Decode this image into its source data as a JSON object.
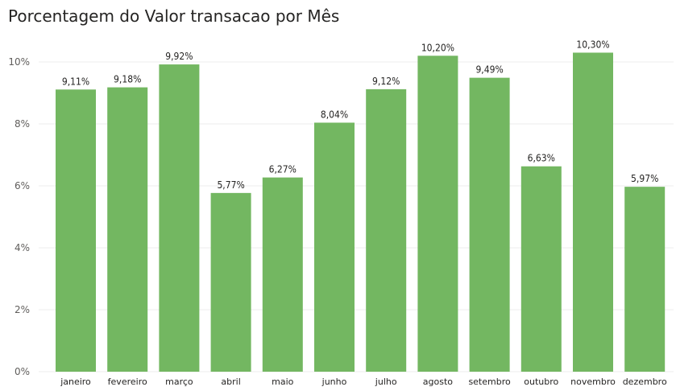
{
  "chart_data": {
    "type": "bar",
    "title": "Porcentagem do Valor transacao por Mês",
    "categories": [
      "janeiro",
      "fevereiro",
      "março",
      "abril",
      "maio",
      "junho",
      "julho",
      "agosto",
      "setembro",
      "outubro",
      "novembro",
      "dezembro"
    ],
    "values": [
      9.11,
      9.18,
      9.92,
      5.77,
      6.27,
      8.04,
      9.12,
      10.2,
      9.49,
      6.63,
      10.3,
      5.97
    ],
    "data_labels": [
      "9,11%",
      "9,18%",
      "9,92%",
      "5,77%",
      "6,27%",
      "8,04%",
      "9,12%",
      "10,20%",
      "9,49%",
      "6,63%",
      "10,30%",
      "5,97%"
    ],
    "yticks": [
      0,
      2,
      4,
      6,
      8,
      10
    ],
    "ytick_labels": [
      "0%",
      "2%",
      "4%",
      "6%",
      "8%",
      "10%"
    ],
    "ylim": [
      0,
      10.6
    ],
    "xlabel": "",
    "ylabel": "",
    "grid": true,
    "legend": "none",
    "bar_color": "#73b761",
    "grid_color": "#eeeeee"
  }
}
